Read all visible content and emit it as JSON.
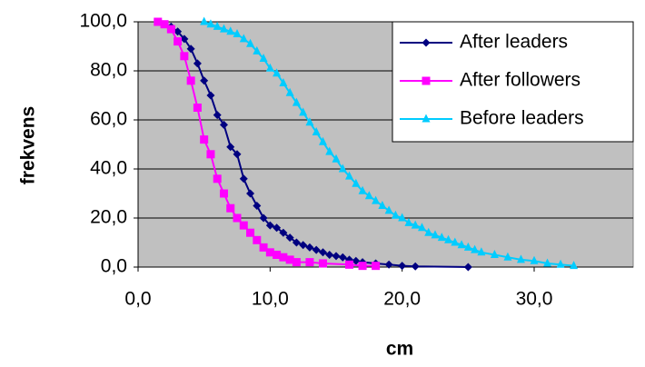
{
  "chart_data": {
    "type": "line",
    "x_label": "cm",
    "y_label": "frekvens",
    "xlim": [
      0,
      37.5
    ],
    "ylim": [
      0,
      100
    ],
    "xticks": [
      {
        "value": 0,
        "label": "0,0"
      },
      {
        "value": 10,
        "label": "10,0"
      },
      {
        "value": 20,
        "label": "20,0"
      },
      {
        "value": 30,
        "label": "30,0"
      }
    ],
    "yticks": [
      {
        "value": 0,
        "label": "0,0"
      },
      {
        "value": 20,
        "label": "20,0"
      },
      {
        "value": 40,
        "label": "40,0"
      },
      {
        "value": 60,
        "label": "60,0"
      },
      {
        "value": 80,
        "label": "80,0"
      },
      {
        "value": 100,
        "label": "100,0"
      }
    ],
    "grid": true,
    "legend": "top-right",
    "plot_background": "#c0c0c0",
    "series": [
      {
        "name": "After leaders",
        "color": "#000080",
        "marker": "diamond",
        "x": [
          1.5,
          2.5,
          3,
          3.5,
          4,
          4.5,
          5,
          5.5,
          6,
          6.5,
          7,
          7.5,
          8,
          8.5,
          9,
          9.5,
          10,
          10.5,
          11,
          11.5,
          12,
          12.5,
          13,
          13.5,
          14,
          14.5,
          15,
          15.5,
          16,
          16.5,
          17,
          18,
          19,
          20,
          21,
          25
        ],
        "values": [
          100,
          98,
          96,
          93,
          89,
          83,
          76,
          70,
          62,
          58,
          49,
          46,
          36,
          30,
          25,
          20,
          17,
          16,
          14,
          12,
          10,
          9,
          8,
          7,
          6,
          5,
          4.5,
          4,
          3,
          2.5,
          2,
          1.5,
          1,
          0.5,
          0.3,
          0
        ]
      },
      {
        "name": "After followers",
        "color": "#ff00ff",
        "marker": "square",
        "x": [
          1.5,
          2,
          2.5,
          3,
          3.5,
          4,
          4.5,
          5,
          5.5,
          6,
          6.5,
          7,
          7.5,
          8,
          8.5,
          9,
          9.5,
          10,
          10.5,
          11,
          11.5,
          12,
          13,
          14,
          16,
          17,
          18
        ],
        "values": [
          100,
          99,
          97,
          92,
          86,
          76,
          65,
          52,
          46,
          36,
          30,
          24,
          20,
          17,
          14,
          11,
          8,
          6,
          5,
          4,
          3,
          2,
          2,
          1.5,
          1,
          0.5,
          0.5
        ]
      },
      {
        "name": "Before leaders",
        "color": "#00ccff",
        "marker": "triangle",
        "x": [
          5,
          5.5,
          6,
          6.5,
          7,
          7.5,
          8,
          8.5,
          9,
          9.5,
          10,
          10.5,
          11,
          11.5,
          12,
          12.5,
          13,
          13.5,
          14,
          14.5,
          15,
          15.5,
          16,
          16.5,
          17,
          17.5,
          18,
          18.5,
          19,
          19.5,
          20,
          20.5,
          21,
          21.5,
          22,
          22.5,
          23,
          23.5,
          24,
          24.5,
          25,
          25.5,
          26,
          27,
          28,
          29,
          30,
          31,
          32,
          33
        ],
        "values": [
          100,
          99,
          98,
          97,
          96,
          95,
          93,
          91,
          88,
          85,
          81,
          79,
          75,
          71,
          67,
          63,
          59,
          55,
          51,
          47,
          44,
          40,
          37,
          34,
          31,
          29,
          27,
          25,
          23,
          21,
          20,
          18,
          17,
          16,
          14,
          13,
          12,
          11,
          10,
          9,
          8,
          7,
          6,
          5,
          4,
          3,
          2.5,
          1.5,
          1,
          0.5
        ]
      }
    ]
  }
}
